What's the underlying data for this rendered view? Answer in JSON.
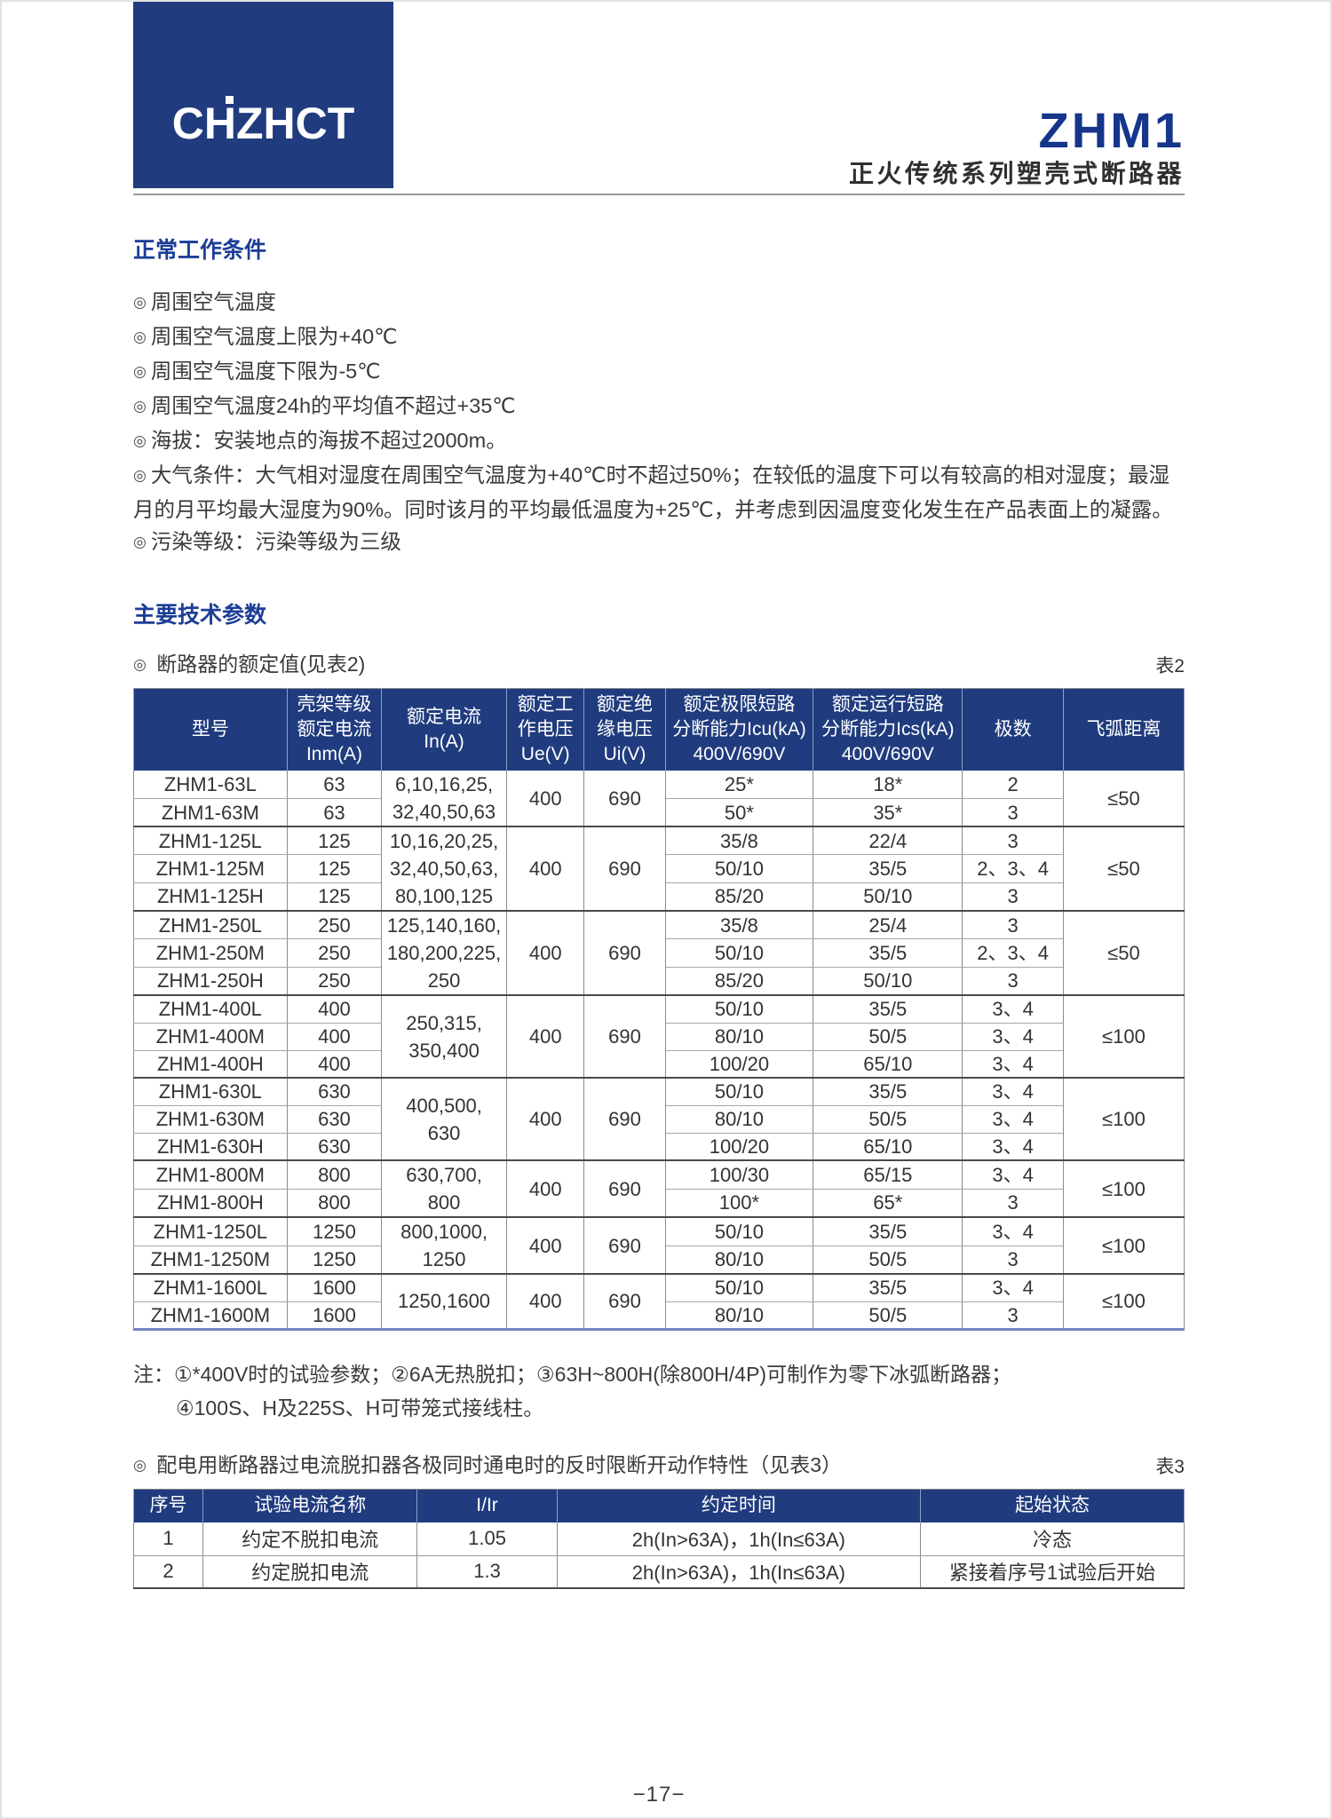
{
  "page": {
    "bullet_mark": "◎",
    "page_number": "−17−"
  },
  "header": {
    "logo_text": "CHZHCT",
    "product_model": "ZHM1",
    "product_subtitle": "正火传统系列塑壳式断路器"
  },
  "working_conditions": {
    "title": "正常工作条件",
    "bullets": [
      "周围空气温度",
      "周围空气温度上限为+40℃",
      "周围空气温度下限为-5℃",
      "周围空气温度24h的平均值不超过+35℃",
      "海拔：安装地点的海拔不超过2000m。",
      "大气条件：大气相对湿度在周围空气温度为+40℃时不超过50%；在较低的温度下可以有较高的相对湿度；最湿月的月平均最大湿度为90%。同时该月的平均最低温度为+25℃，并考虑到因温度变化发生在产品表面上的凝露。",
      "污染等级：污染等级为三级"
    ]
  },
  "parameters": {
    "title": "主要技术参数",
    "table2_caption": "断路器的额定值(见表2)",
    "table2_label": "表2",
    "table2": {
      "columns": [
        {
          "key": "model",
          "label": "型号",
          "width": "14.6%"
        },
        {
          "key": "inm",
          "label": "壳架等级\n额定电流\nInm(A)",
          "width": "9.0%"
        },
        {
          "key": "in_a",
          "label": "额定电流\nIn(A)",
          "width": "11.9%"
        },
        {
          "key": "ue",
          "label": "额定工\n作电压\nUe(V)",
          "width": "7.4%"
        },
        {
          "key": "ui",
          "label": "额定绝\n缘电压\nUi(V)",
          "width": "7.7%"
        },
        {
          "key": "icu",
          "label": "额定极限短路\n分断能力Icu(kA)\n400V/690V",
          "width": "14.1%"
        },
        {
          "key": "ics",
          "label": "额定运行短路\n分断能力Ics(kA)\n400V/690V",
          "width": "14.2%"
        },
        {
          "key": "poles",
          "label": "极数",
          "width": "9.6%"
        },
        {
          "key": "arc",
          "label": "飞弧距离",
          "width": "11.5%"
        }
      ],
      "groups": [
        {
          "in_a": "6,10,16,25,\n32,40,50,63",
          "ue": "400",
          "ui": "690",
          "arc": "≤50",
          "rows": [
            {
              "model": "ZHM1-63L",
              "inm": "63",
              "icu": "25*",
              "ics": "18*",
              "poles": "2"
            },
            {
              "model": "ZHM1-63M",
              "inm": "63",
              "icu": "50*",
              "ics": "35*",
              "poles": "3"
            }
          ]
        },
        {
          "in_a": "10,16,20,25,\n32,40,50,63,\n80,100,125",
          "ue": "400",
          "ui": "690",
          "arc": "≤50",
          "rows": [
            {
              "model": "ZHM1-125L",
              "inm": "125",
              "icu": "35/8",
              "ics": "22/4",
              "poles": "3"
            },
            {
              "model": "ZHM1-125M",
              "inm": "125",
              "icu": "50/10",
              "ics": "35/5",
              "poles": "2、3、4"
            },
            {
              "model": "ZHM1-125H",
              "inm": "125",
              "icu": "85/20",
              "ics": "50/10",
              "poles": "3"
            }
          ]
        },
        {
          "in_a": "125,140,160,\n180,200,225,\n250",
          "ue": "400",
          "ui": "690",
          "arc": "≤50",
          "rows": [
            {
              "model": "ZHM1-250L",
              "inm": "250",
              "icu": "35/8",
              "ics": "25/4",
              "poles": "3"
            },
            {
              "model": "ZHM1-250M",
              "inm": "250",
              "icu": "50/10",
              "ics": "35/5",
              "poles": "2、3、4"
            },
            {
              "model": "ZHM1-250H",
              "inm": "250",
              "icu": "85/20",
              "ics": "50/10",
              "poles": "3"
            }
          ]
        },
        {
          "in_a": "250,315,\n350,400",
          "ue": "400",
          "ui": "690",
          "arc": "≤100",
          "rows": [
            {
              "model": "ZHM1-400L",
              "inm": "400",
              "icu": "50/10",
              "ics": "35/5",
              "poles": "3、4"
            },
            {
              "model": "ZHM1-400M",
              "inm": "400",
              "icu": "80/10",
              "ics": "50/5",
              "poles": "3、4"
            },
            {
              "model": "ZHM1-400H",
              "inm": "400",
              "icu": "100/20",
              "ics": "65/10",
              "poles": "3、4"
            }
          ]
        },
        {
          "in_a": "400,500,\n630",
          "ue": "400",
          "ui": "690",
          "arc": "≤100",
          "rows": [
            {
              "model": "ZHM1-630L",
              "inm": "630",
              "icu": "50/10",
              "ics": "35/5",
              "poles": "3、4"
            },
            {
              "model": "ZHM1-630M",
              "inm": "630",
              "icu": "80/10",
              "ics": "50/5",
              "poles": "3、4"
            },
            {
              "model": "ZHM1-630H",
              "inm": "630",
              "icu": "100/20",
              "ics": "65/10",
              "poles": "3、4"
            }
          ]
        },
        {
          "in_a": "630,700,\n800",
          "ue": "400",
          "ui": "690",
          "arc": "≤100",
          "rows": [
            {
              "model": "ZHM1-800M",
              "inm": "800",
              "icu": "100/30",
              "ics": "65/15",
              "poles": "3、4"
            },
            {
              "model": "ZHM1-800H",
              "inm": "800",
              "icu": "100*",
              "ics": "65*",
              "poles": "3"
            }
          ]
        },
        {
          "in_a": "800,1000,\n1250",
          "ue": "400",
          "ui": "690",
          "arc": "≤100",
          "rows": [
            {
              "model": "ZHM1-1250L",
              "inm": "1250",
              "icu": "50/10",
              "ics": "35/5",
              "poles": "3、4"
            },
            {
              "model": "ZHM1-1250M",
              "inm": "1250",
              "icu": "80/10",
              "ics": "50/5",
              "poles": "3"
            }
          ]
        },
        {
          "in_a": "1250,1600",
          "ue": "400",
          "ui": "690",
          "arc": "≤100",
          "rows": [
            {
              "model": "ZHM1-1600L",
              "inm": "1600",
              "icu": "50/10",
              "ics": "35/5",
              "poles": "3、4"
            },
            {
              "model": "ZHM1-1600M",
              "inm": "1600",
              "icu": "80/10",
              "ics": "50/5",
              "poles": "3"
            }
          ]
        }
      ]
    }
  },
  "notes": {
    "line1": "注：①*400V时的试验参数；②6A无热脱扣；③63H~800H(除800H/4P)可制作为零下冰弧断路器；",
    "line2": "④100S、H及225S、H可带笼式接线柱。"
  },
  "tripping": {
    "caption": "配电用断路器过电流脱扣器各极同时通电时的反时限断开动作特性（见表3）",
    "table3_label": "表3",
    "table3": {
      "columns": [
        {
          "label": "序号",
          "width": "6.6%"
        },
        {
          "label": "试验电流名称",
          "width": "20.4%"
        },
        {
          "label": "I/Ir",
          "width": "13.3%"
        },
        {
          "label": "约定时间",
          "width": "34.6%"
        },
        {
          "label": "起始状态",
          "width": "25.1%"
        }
      ],
      "rows": [
        [
          "1",
          "约定不脱扣电流",
          "1.05",
          "2h(In>63A)，1h(In≤63A)",
          "冷态"
        ],
        [
          "2",
          "约定脱扣电流",
          "1.3",
          "2h(In>63A)，1h(In≤63A)",
          "紧接着序号1试验后开始"
        ]
      ]
    }
  }
}
